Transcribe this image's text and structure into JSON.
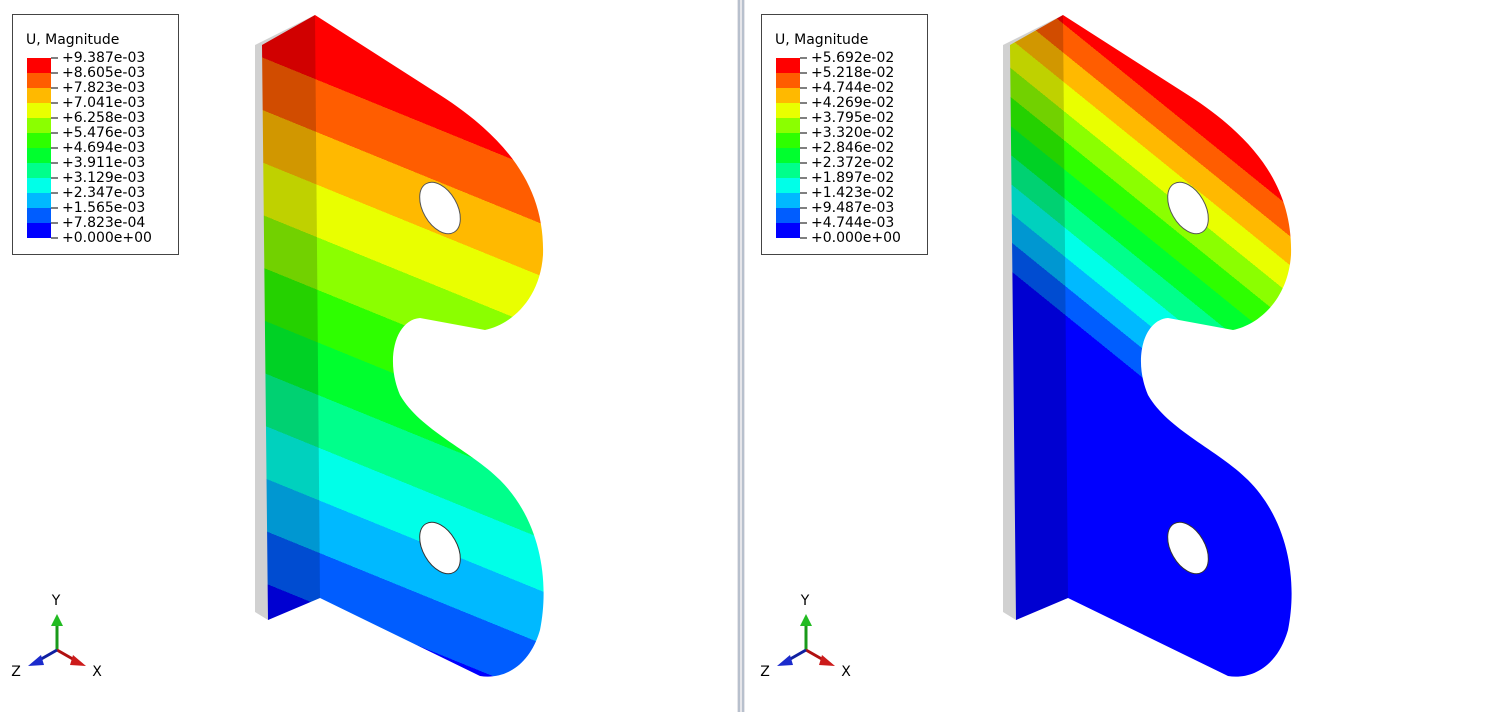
{
  "panels": [
    {
      "legend": {
        "title": "U, Magnitude",
        "labels": [
          "+9.387e-03",
          "+8.605e-03",
          "+7.823e-03",
          "+7.041e-03",
          "+6.258e-03",
          "+5.476e-03",
          "+4.694e-03",
          "+3.911e-03",
          "+3.129e-03",
          "+2.347e-03",
          "+1.565e-03",
          "+7.823e-04",
          "+0.000e+00"
        ],
        "colors": [
          "#ff0000",
          "#ff5d00",
          "#ffb900",
          "#e9ff00",
          "#8bff00",
          "#2eff00",
          "#00ff2e",
          "#00ff8b",
          "#00ffe8",
          "#00b9ff",
          "#005dff",
          "#0000ff"
        ]
      },
      "triad": {
        "y": "Y",
        "z": "Z",
        "x": "X"
      }
    },
    {
      "legend": {
        "title": "U, Magnitude",
        "labels": [
          "+5.692e-02",
          "+5.218e-02",
          "+4.744e-02",
          "+4.269e-02",
          "+3.795e-02",
          "+3.320e-02",
          "+2.846e-02",
          "+2.372e-02",
          "+1.897e-02",
          "+1.423e-02",
          "+9.487e-03",
          "+4.744e-03",
          "+0.000e+00"
        ],
        "colors": [
          "#ff0000",
          "#ff5d00",
          "#ffb900",
          "#e9ff00",
          "#8bff00",
          "#2eff00",
          "#00ff2e",
          "#00ff8b",
          "#00ffe8",
          "#00b9ff",
          "#005dff",
          "#0000ff"
        ]
      },
      "triad": {
        "y": "Y",
        "z": "Z",
        "x": "X"
      }
    }
  ]
}
